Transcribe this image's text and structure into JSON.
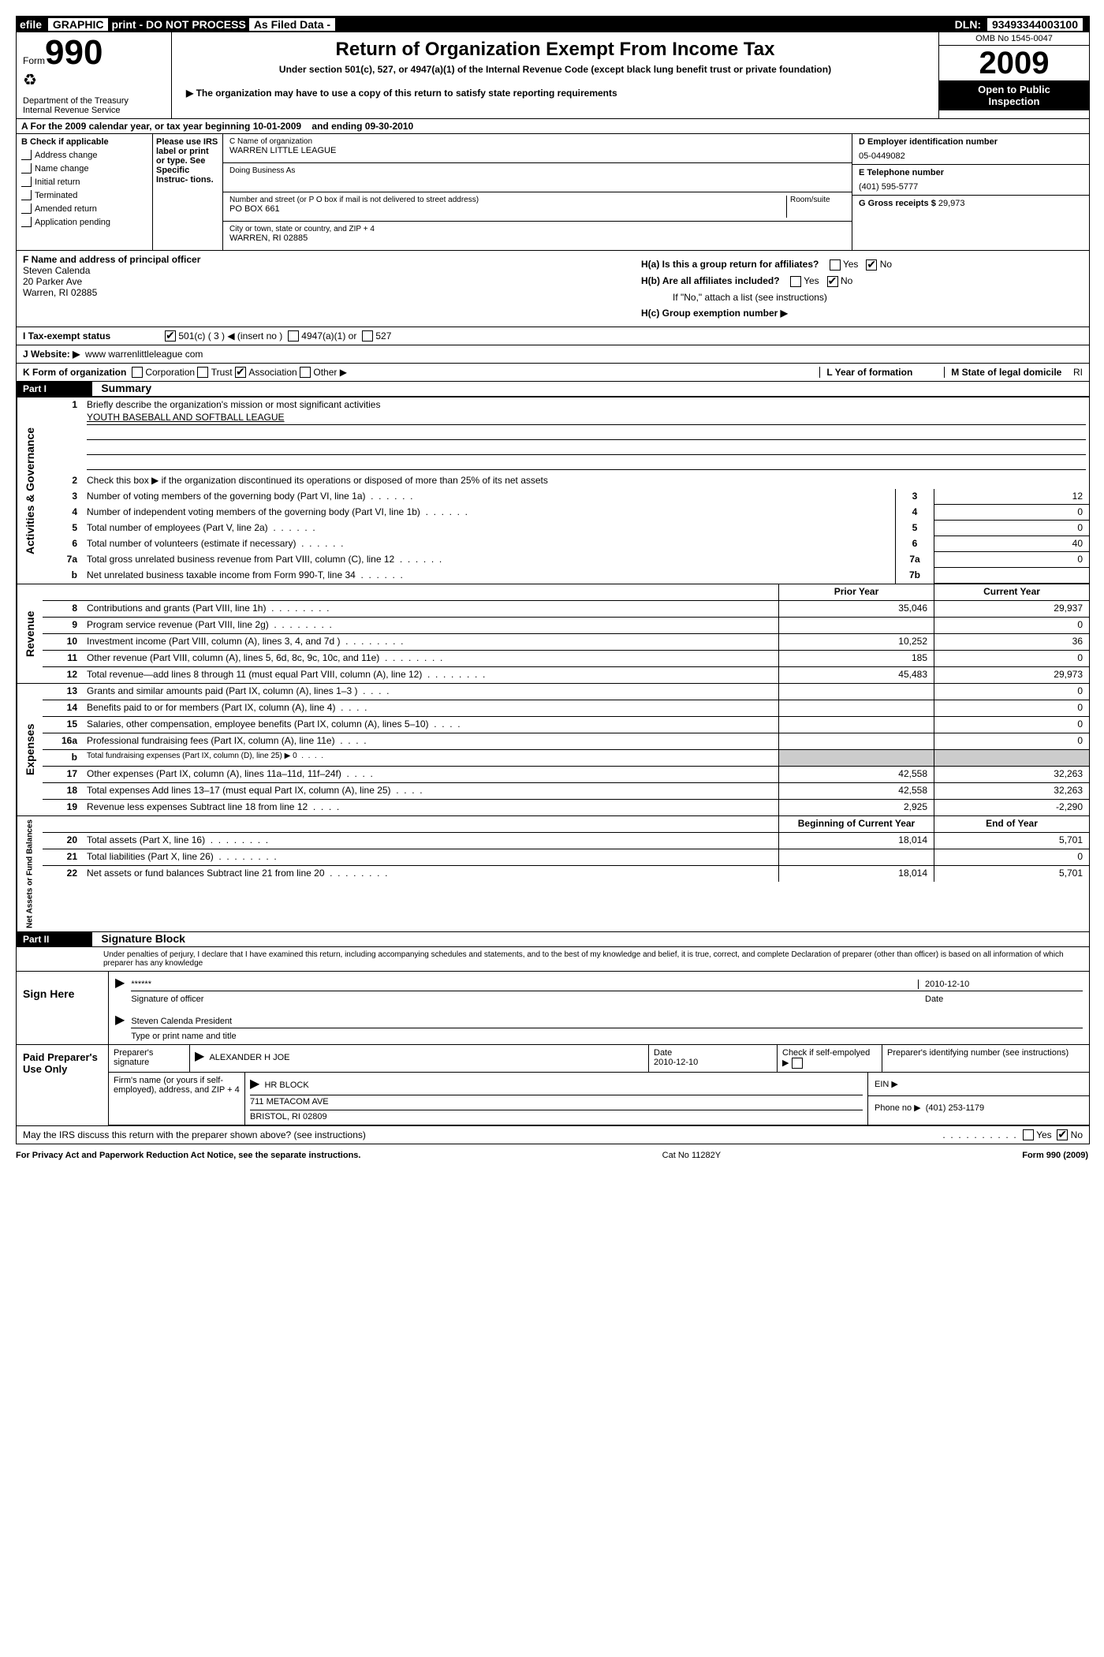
{
  "topbar": {
    "efile_prefix": "efile",
    "efile_text": "GRAPHIC",
    "print": "print - DO NOT PROCESS",
    "as_filed": "As Filed Data -",
    "dln_label": "DLN:",
    "dln": "93493344003100"
  },
  "header": {
    "form_label": "Form",
    "form_number": "990",
    "dept": "Department of the Treasury",
    "irs": "Internal Revenue Service",
    "title": "Return of Organization Exempt From Income Tax",
    "subtitle": "Under section 501(c), 527, or 4947(a)(1) of the Internal Revenue Code (except black lung benefit trust or private foundation)",
    "note": "▶ The organization may have to use a copy of this return to satisfy state reporting requirements",
    "omb": "OMB No 1545-0047",
    "year": "2009",
    "inspection1": "Open to Public",
    "inspection2": "Inspection"
  },
  "row_a": {
    "prefix": "A  For the 2009 calendar year, or tax year beginning",
    "begin": "10-01-2009",
    "mid": "and ending",
    "end": "09-30-2010"
  },
  "section_b": {
    "label": "B  Check if applicable",
    "checks": [
      "Address change",
      "Name change",
      "Initial return",
      "Terminated",
      "Amended return",
      "Application pending"
    ],
    "irs_note": "Please use IRS label or print or type. See Specific Instruc- tions.",
    "c_label": "C Name of organization",
    "c_name": "WARREN LITTLE LEAGUE",
    "dba_label": "Doing Business As",
    "street_label": "Number and street (or P O  box if mail is not delivered to street address)",
    "room_label": "Room/suite",
    "street": "PO BOX 661",
    "city_label": "City or town, state or country, and ZIP + 4",
    "city": "WARREN, RI  02885",
    "d_label": "D Employer identification number",
    "d_value": "05-0449082",
    "e_label": "E Telephone number",
    "e_value": "(401) 595-5777",
    "g_label": "G Gross receipts $",
    "g_value": "29,973"
  },
  "section_fh": {
    "f_label": "F    Name and address of principal officer",
    "officer_name": "Steven Calenda",
    "officer_addr1": "20 Parker Ave",
    "officer_addr2": "Warren, RI  02885",
    "ha": "H(a)  Is this a group return for affiliates?",
    "hb": "H(b)  Are all affiliates included?",
    "hb_note": "If \"No,\" attach a list  (see instructions)",
    "hc": "H(c)   Group exemption number ▶"
  },
  "row_i": {
    "label": "I    Tax-exempt status",
    "opt1": "501(c) ( 3 ) ◀ (insert no )",
    "opt2": "4947(a)(1) or",
    "opt3": "527"
  },
  "row_j": {
    "label": "J   Website: ▶",
    "value": "www warrenlittleleague com"
  },
  "row_k": {
    "label": "K Form of organization",
    "opts": [
      "Corporation",
      "Trust",
      "Association",
      "Other ▶"
    ],
    "l_label": "L Year of formation",
    "m_label": "M State of legal domicile",
    "m_value": "RI"
  },
  "part1": {
    "header": "Part I",
    "title": "Summary",
    "side_labels": [
      "Activities & Governance",
      "Revenue",
      "Expenses",
      "Net Assets or Fund Balances"
    ],
    "mission_label": "Briefly describe the organization's mission or most significant activities",
    "mission": "YOUTH BASEBALL AND SOFTBALL LEAGUE",
    "line2": "Check this box ▶     if the organization discontinued its operations or disposed of more than 25% of its net assets",
    "lines_gov": [
      {
        "n": "3",
        "t": "Number of voting members of the governing body (Part VI, line 1a)",
        "k": "3",
        "v": "12"
      },
      {
        "n": "4",
        "t": "Number of independent voting members of the governing body (Part VI, line 1b)",
        "k": "4",
        "v": "0"
      },
      {
        "n": "5",
        "t": "Total number of employees (Part V, line 2a)",
        "k": "5",
        "v": "0"
      },
      {
        "n": "6",
        "t": "Total number of volunteers (estimate if necessary)",
        "k": "6",
        "v": "40"
      },
      {
        "n": "7a",
        "t": "Total gross unrelated business revenue from Part VIII, column (C), line 12",
        "k": "7a",
        "v": "0"
      },
      {
        "n": "b",
        "t": "Net unrelated business taxable income from Form 990-T, line 34",
        "k": "7b",
        "v": ""
      }
    ],
    "col_headers": {
      "prior": "Prior Year",
      "current": "Current Year"
    },
    "revenue": [
      {
        "n": "8",
        "t": "Contributions and grants (Part VIII, line 1h)",
        "p": "35,046",
        "c": "29,937"
      },
      {
        "n": "9",
        "t": "Program service revenue (Part VIII, line 2g)",
        "p": "",
        "c": "0"
      },
      {
        "n": "10",
        "t": "Investment income (Part VIII, column (A), lines 3, 4, and 7d )",
        "p": "10,252",
        "c": "36"
      },
      {
        "n": "11",
        "t": "Other revenue (Part VIII, column (A), lines 5, 6d, 8c, 9c, 10c, and 11e)",
        "p": "185",
        "c": "0"
      },
      {
        "n": "12",
        "t": "Total revenue—add lines 8 through 11 (must equal Part VIII, column (A), line 12)",
        "p": "45,483",
        "c": "29,973"
      }
    ],
    "expenses": [
      {
        "n": "13",
        "t": "Grants and similar amounts paid (Part IX, column (A), lines 1–3 )",
        "p": "",
        "c": "0"
      },
      {
        "n": "14",
        "t": "Benefits paid to or for members (Part IX, column (A), line 4)",
        "p": "",
        "c": "0"
      },
      {
        "n": "15",
        "t": "Salaries, other compensation, employee benefits (Part IX, column (A), lines 5–10)",
        "p": "",
        "c": "0"
      },
      {
        "n": "16a",
        "t": "Professional fundraising fees (Part IX, column (A), line 11e)",
        "p": "",
        "c": "0"
      },
      {
        "n": "b",
        "t": "Total fundraising expenses (Part IX, column (D), line 25) ▶ 0",
        "p": "shaded",
        "c": "shaded"
      },
      {
        "n": "17",
        "t": "Other expenses (Part IX, column (A), lines 11a–11d, 11f–24f)",
        "p": "42,558",
        "c": "32,263"
      },
      {
        "n": "18",
        "t": "Total expenses  Add lines 13–17 (must equal Part IX, column (A), line 25)",
        "p": "42,558",
        "c": "32,263"
      },
      {
        "n": "19",
        "t": "Revenue less expenses  Subtract line 18 from line 12",
        "p": "2,925",
        "c": "-2,290"
      }
    ],
    "net_headers": {
      "begin": "Beginning of Current Year",
      "end": "End of Year"
    },
    "net": [
      {
        "n": "20",
        "t": "Total assets (Part X, line 16)",
        "p": "18,014",
        "c": "5,701"
      },
      {
        "n": "21",
        "t": "Total liabilities (Part X, line 26)",
        "p": "",
        "c": "0"
      },
      {
        "n": "22",
        "t": "Net assets or fund balances  Subtract line 21 from line 20",
        "p": "18,014",
        "c": "5,701"
      }
    ]
  },
  "part2": {
    "header": "Part II",
    "title": "Signature Block",
    "perjury": "Under penalties of perjury, I declare that I have examined this return, including accompanying schedules and statements, and to the best of my knowledge and belief, it is true, correct, and complete  Declaration of preparer (other than officer) is based on all information of which preparer has any knowledge",
    "sign_here": "Sign Here",
    "stars": "******",
    "sig_officer": "Signature of officer",
    "date_label": "Date",
    "date": "2010-12-10",
    "name_title": "Steven Calenda President",
    "type_name": "Type or print name and title"
  },
  "paid": {
    "label": "Paid Preparer's Use Only",
    "prep_sig": "Preparer's signature",
    "prep_name": "ALEXANDER H JOE",
    "date_label": "Date",
    "date": "2010-12-10",
    "check_label": "Check if self-empolyed ▶",
    "pin_label": "Preparer's identifying number (see instructions)",
    "firm_label": "Firm's name (or yours if self-employed), address, and ZIP + 4",
    "firm_name": "HR BLOCK",
    "firm_addr1": "711 METACOM AVE",
    "firm_addr2": "BRISTOL, RI  02809",
    "ein_label": "EIN ▶",
    "phone_label": "Phone no  ▶",
    "phone": "(401) 253-1179",
    "discuss": "May the IRS discuss this return with the preparer shown above? (see instructions)"
  },
  "footer": {
    "left": "For Privacy Act and Paperwork Reduction Act Notice, see the separate instructions.",
    "mid": "Cat No 11282Y",
    "right": "Form 990 (2009)"
  },
  "yes": "Yes",
  "no": "No"
}
